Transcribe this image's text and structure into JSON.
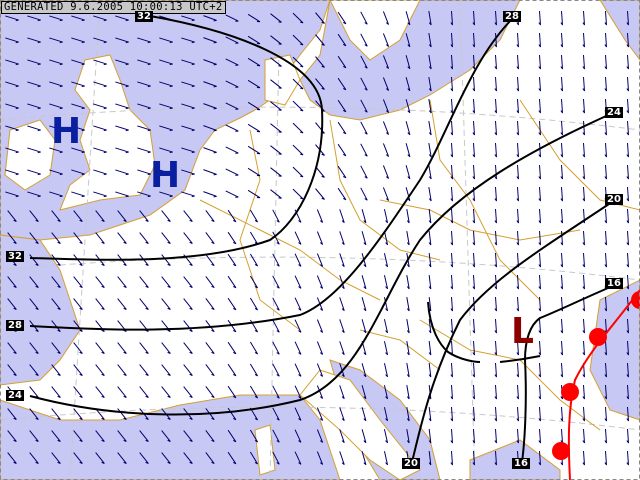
{
  "header": {
    "generated": "GENERATED  9.6.2005  10:00:13  UTC+2"
  },
  "colors": {
    "sea": "#c8c8f4",
    "land": "#ffffff",
    "borders": "#d4a030",
    "isobars": "#000000",
    "wind_arrows": "#00006e",
    "high": "#0a1ea0",
    "low": "#8c0000",
    "cold_front": "#ff0000"
  },
  "isobar_labels": [
    {
      "value": "32"
    },
    {
      "value": "28"
    },
    {
      "value": "24"
    },
    {
      "value": "20"
    },
    {
      "value": "16"
    },
    {
      "value": "32"
    },
    {
      "value": "28"
    },
    {
      "value": "24"
    },
    {
      "value": "20"
    },
    {
      "value": "16"
    }
  ],
  "pressure_centers": [
    {
      "type": "high",
      "label": "H"
    },
    {
      "type": "high",
      "label": "H"
    },
    {
      "type": "low",
      "label": "L"
    }
  ]
}
